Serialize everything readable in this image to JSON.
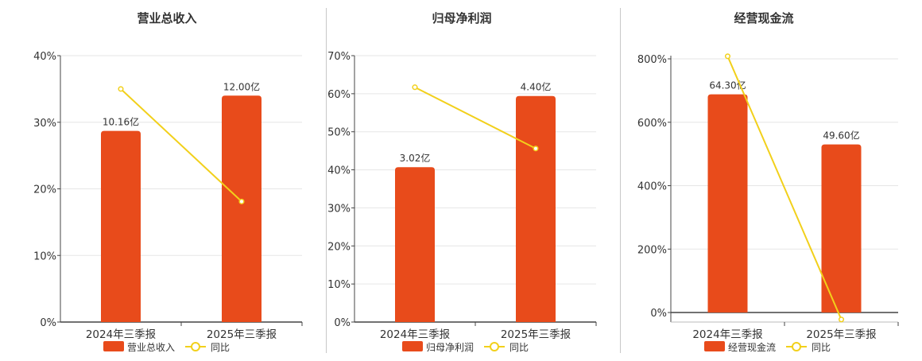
{
  "colors": {
    "bar": "#e84b1b",
    "line": "#f2d01b",
    "grid": "#e6e6e6",
    "axis": "#444444",
    "text": "#333333"
  },
  "chart_data": [
    {
      "type": "bar",
      "title": "营业总收入",
      "categories": [
        "2024年三季报",
        "2025年三季报"
      ],
      "bar_series": {
        "name": "营业总收入",
        "values": [
          28.7,
          34.0
        ],
        "labels": [
          "10.16亿",
          "12.00亿"
        ]
      },
      "line_series": {
        "name": "同比",
        "values": [
          35.0,
          18.1
        ]
      },
      "yticks": [
        "0%",
        "10%",
        "20%",
        "30%",
        "40%"
      ],
      "ylim": [
        0,
        40
      ],
      "grid": true,
      "legend": "bottom"
    },
    {
      "type": "bar",
      "title": "归母净利润",
      "categories": [
        "2024年三季报",
        "2025年三季报"
      ],
      "bar_series": {
        "name": "归母净利润",
        "values": [
          40.7,
          59.4
        ],
        "labels": [
          "3.02亿",
          "4.40亿"
        ]
      },
      "line_series": {
        "name": "同比",
        "values": [
          61.7,
          45.6
        ]
      },
      "yticks": [
        "0%",
        "10%",
        "20%",
        "30%",
        "40%",
        "50%",
        "60%",
        "70%"
      ],
      "ylim": [
        0,
        70
      ],
      "grid": true,
      "legend": "bottom"
    },
    {
      "type": "bar",
      "title": "经营现金流",
      "categories": [
        "2024年三季报",
        "2025年三季报"
      ],
      "bar_series": {
        "name": "经营现金流",
        "values": [
          688,
          530
        ],
        "labels": [
          "64.30亿",
          "49.60亿"
        ]
      },
      "line_series": {
        "name": "同比",
        "values": [
          808,
          -22
        ]
      },
      "yticks": [
        "0%",
        "200%",
        "400%",
        "600%",
        "800%"
      ],
      "ytick_values": [
        0,
        200,
        400,
        600,
        800
      ],
      "ylim": [
        -30,
        810
      ],
      "grid": true,
      "legend": "bottom"
    }
  ]
}
